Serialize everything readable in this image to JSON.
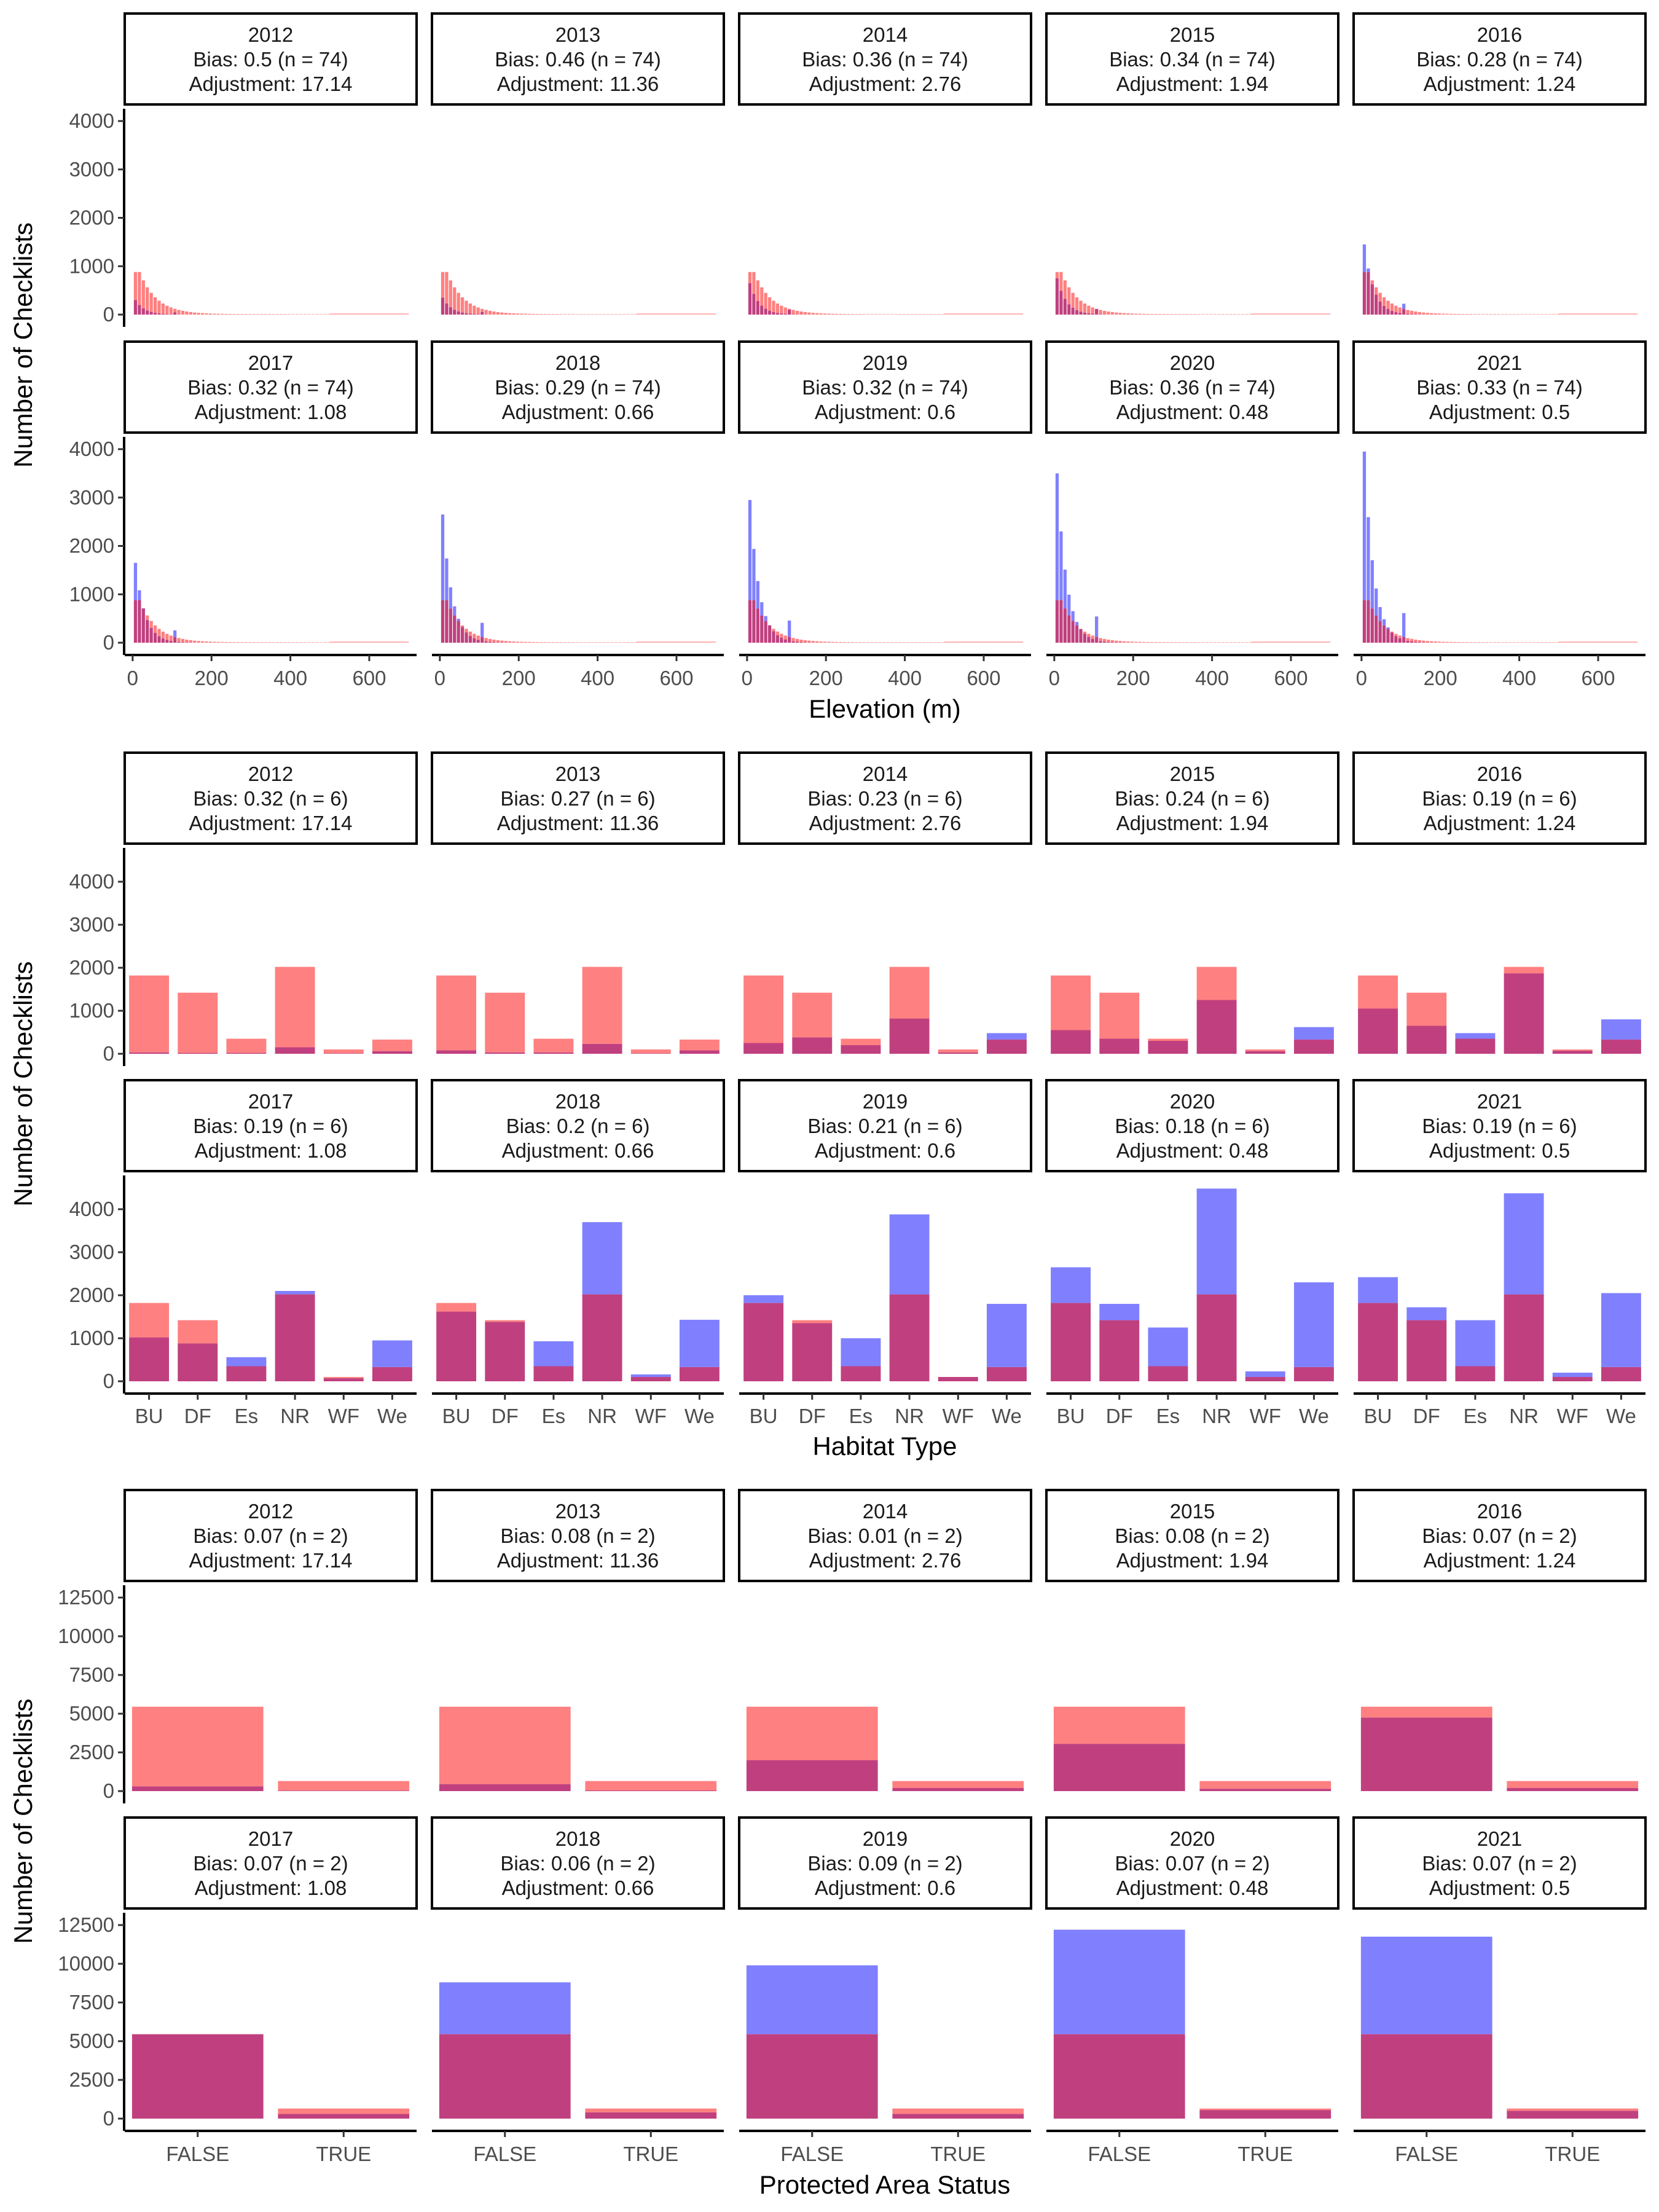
{
  "colors": {
    "reference": "#ff8080",
    "observed": "#8080ff",
    "overlap": "#c0407f"
  },
  "chart_data": [
    {
      "type": "histogram",
      "variable": "elevation",
      "xlabel": "Elevation (m)",
      "ylabel": "Number of Checklists",
      "xlim": [
        -20,
        720
      ],
      "ylim": [
        0,
        4000
      ],
      "x_ticks": [
        "0",
        "200",
        "400",
        "600"
      ],
      "y_ticks": [
        "0",
        "1000",
        "2000",
        "3000",
        "4000"
      ],
      "panels": [
        {
          "year": "2012",
          "bias": "Bias: 0.5 (n = 74)",
          "adjustment": "Adjustment: 17.14",
          "observed_peak": 300
        },
        {
          "year": "2013",
          "bias": "Bias: 0.46 (n = 74)",
          "adjustment": "Adjustment: 11.36",
          "observed_peak": 350
        },
        {
          "year": "2014",
          "bias": "Bias: 0.36 (n = 74)",
          "adjustment": "Adjustment: 2.76",
          "observed_peak": 650
        },
        {
          "year": "2015",
          "bias": "Bias: 0.34 (n = 74)",
          "adjustment": "Adjustment: 1.94",
          "observed_peak": 750
        },
        {
          "year": "2016",
          "bias": "Bias: 0.28 (n = 74)",
          "adjustment": "Adjustment: 1.24",
          "observed_peak": 1450
        },
        {
          "year": "2017",
          "bias": "Bias: 0.32 (n = 74)",
          "adjustment": "Adjustment: 1.08",
          "observed_peak": 1650
        },
        {
          "year": "2018",
          "bias": "Bias: 0.29 (n = 74)",
          "adjustment": "Adjustment: 0.66",
          "observed_peak": 2650
        },
        {
          "year": "2019",
          "bias": "Bias: 0.32 (n = 74)",
          "adjustment": "Adjustment: 0.6",
          "observed_peak": 2950
        },
        {
          "year": "2020",
          "bias": "Bias: 0.36 (n = 74)",
          "adjustment": "Adjustment: 0.48",
          "observed_peak": 3500
        },
        {
          "year": "2021",
          "bias": "Bias: 0.33 (n = 74)",
          "adjustment": "Adjustment: 0.5",
          "observed_peak": 3950
        }
      ]
    },
    {
      "type": "bar",
      "variable": "habitat",
      "xlabel": "Habitat Type",
      "ylabel": "Number of Checklists",
      "ylim": [
        0,
        4500
      ],
      "categories": [
        "BU",
        "DF",
        "Es",
        "NR",
        "WF",
        "We"
      ],
      "y_ticks": [
        "0",
        "1000",
        "2000",
        "3000",
        "4000"
      ],
      "reference_values": [
        1820,
        1420,
        350,
        2020,
        100,
        330
      ],
      "panels": [
        {
          "year": "2012",
          "bias": "Bias: 0.32 (n = 6)",
          "adjustment": "Adjustment: 17.14",
          "observed": [
            30,
            20,
            20,
            150,
            10,
            60
          ]
        },
        {
          "year": "2013",
          "bias": "Bias: 0.27 (n = 6)",
          "adjustment": "Adjustment: 11.36",
          "observed": [
            80,
            30,
            30,
            230,
            10,
            80
          ]
        },
        {
          "year": "2014",
          "bias": "Bias: 0.23 (n = 6)",
          "adjustment": "Adjustment: 2.76",
          "observed": [
            250,
            380,
            200,
            820,
            30,
            480
          ]
        },
        {
          "year": "2015",
          "bias": "Bias: 0.24 (n = 6)",
          "adjustment": "Adjustment: 1.94",
          "observed": [
            550,
            350,
            300,
            1250,
            60,
            620
          ]
        },
        {
          "year": "2016",
          "bias": "Bias: 0.19 (n = 6)",
          "adjustment": "Adjustment: 1.24",
          "observed": [
            1050,
            650,
            480,
            1870,
            70,
            800
          ]
        },
        {
          "year": "2017",
          "bias": "Bias: 0.19 (n = 6)",
          "adjustment": "Adjustment: 1.08",
          "observed": [
            1020,
            880,
            560,
            2100,
            70,
            950
          ]
        },
        {
          "year": "2018",
          "bias": "Bias: 0.2 (n = 6)",
          "adjustment": "Adjustment: 0.66",
          "observed": [
            1620,
            1380,
            930,
            3700,
            160,
            1430
          ]
        },
        {
          "year": "2019",
          "bias": "Bias: 0.21 (n = 6)",
          "adjustment": "Adjustment: 0.6",
          "observed": [
            2000,
            1350,
            1000,
            3880,
            100,
            1800
          ]
        },
        {
          "year": "2020",
          "bias": "Bias: 0.18 (n = 6)",
          "adjustment": "Adjustment: 0.48",
          "observed": [
            2650,
            1800,
            1250,
            4480,
            230,
            2300
          ]
        },
        {
          "year": "2021",
          "bias": "Bias: 0.19 (n = 6)",
          "adjustment": "Adjustment: 0.5",
          "observed": [
            2420,
            1720,
            1420,
            4370,
            200,
            2050
          ]
        }
      ]
    },
    {
      "type": "bar",
      "variable": "protected_area",
      "xlabel": "Protected Area Status",
      "ylabel": "Number of Checklists",
      "ylim": [
        0,
        12500
      ],
      "categories": [
        "FALSE",
        "TRUE"
      ],
      "y_ticks": [
        "0",
        "2500",
        "5000",
        "7500",
        "10000",
        "12500"
      ],
      "reference_values": [
        5450,
        650
      ],
      "panels": [
        {
          "year": "2012",
          "bias": "Bias: 0.07 (n = 2)",
          "adjustment": "Adjustment: 17.14",
          "observed": [
            300,
            30
          ]
        },
        {
          "year": "2013",
          "bias": "Bias: 0.08 (n = 2)",
          "adjustment": "Adjustment: 11.36",
          "observed": [
            450,
            40
          ]
        },
        {
          "year": "2014",
          "bias": "Bias: 0.01 (n = 2)",
          "adjustment": "Adjustment: 2.76",
          "observed": [
            2000,
            200
          ]
        },
        {
          "year": "2015",
          "bias": "Bias: 0.08 (n = 2)",
          "adjustment": "Adjustment: 1.94",
          "observed": [
            3050,
            150
          ]
        },
        {
          "year": "2016",
          "bias": "Bias: 0.07 (n = 2)",
          "adjustment": "Adjustment: 1.24",
          "observed": [
            4750,
            200
          ]
        },
        {
          "year": "2017",
          "bias": "Bias: 0.07 (n = 2)",
          "adjustment": "Adjustment: 1.08",
          "observed": [
            5450,
            300
          ]
        },
        {
          "year": "2018",
          "bias": "Bias: 0.06 (n = 2)",
          "adjustment": "Adjustment: 0.66",
          "observed": [
            8800,
            400
          ]
        },
        {
          "year": "2019",
          "bias": "Bias: 0.09 (n = 2)",
          "adjustment": "Adjustment: 0.6",
          "observed": [
            9900,
            300
          ]
        },
        {
          "year": "2020",
          "bias": "Bias: 0.07 (n = 2)",
          "adjustment": "Adjustment: 0.48",
          "observed": [
            12200,
            550
          ]
        },
        {
          "year": "2021",
          "bias": "Bias: 0.07 (n = 2)",
          "adjustment": "Adjustment: 0.5",
          "observed": [
            11750,
            500
          ]
        }
      ]
    }
  ]
}
